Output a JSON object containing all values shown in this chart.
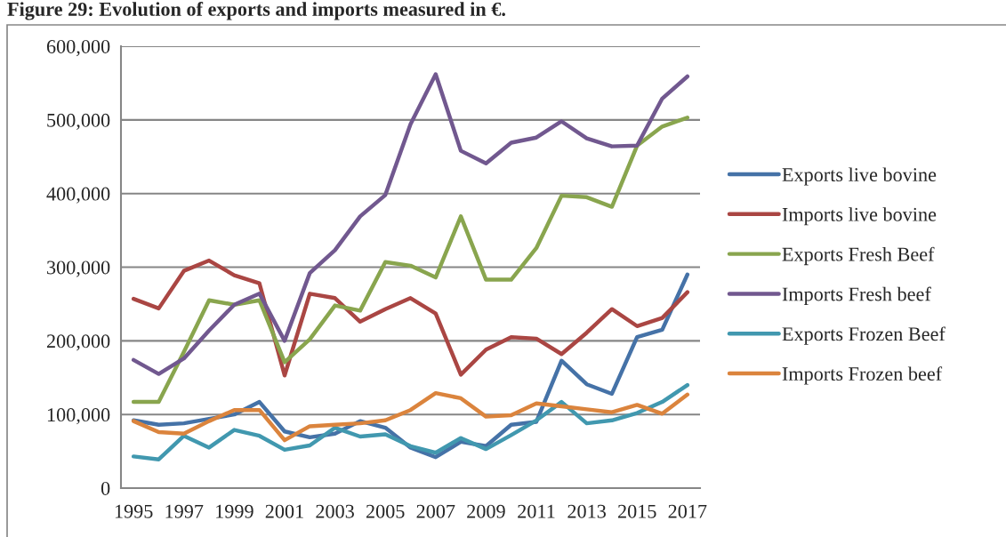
{
  "chart_data": {
    "type": "line",
    "title": "Figure 29: Evolution of exports and imports measured in €.",
    "categories": [
      "1995",
      null,
      "1997",
      null,
      "1999",
      null,
      "2001",
      null,
      "2003",
      null,
      "2005",
      null,
      "2007",
      null,
      "2009",
      null,
      "2011",
      null,
      "2013",
      null,
      "2015",
      null,
      "2017"
    ],
    "series": [
      {
        "name": "Exports live bovine",
        "color": "#4572a7",
        "values": [
          92000,
          86000,
          88000,
          94000,
          100000,
          117000,
          77000,
          69000,
          74000,
          91000,
          82000,
          55000,
          42000,
          63000,
          57000,
          86000,
          90000,
          173000,
          141000,
          128000,
          205000,
          215000,
          290000
        ]
      },
      {
        "name": "Imports live bovine",
        "color": "#aa4643",
        "values": [
          257000,
          244000,
          295000,
          309000,
          289000,
          278000,
          153000,
          264000,
          258000,
          226000,
          243000,
          258000,
          237000,
          154000,
          188000,
          205000,
          203000,
          182000,
          211000,
          243000,
          220000,
          231000,
          266000
        ]
      },
      {
        "name": "Exports Fresh Beef",
        "color": "#89a54e",
        "values": [
          117000,
          117000,
          185000,
          255000,
          249000,
          255000,
          171000,
          202000,
          248000,
          241000,
          307000,
          302000,
          286000,
          369000,
          283000,
          283000,
          326000,
          397000,
          395000,
          382000,
          465000,
          491000,
          503000
        ]
      },
      {
        "name": "Imports Fresh beef",
        "color": "#71588f",
        "values": [
          174000,
          155000,
          176000,
          214000,
          249000,
          264000,
          200000,
          292000,
          323000,
          369000,
          398000,
          494000,
          562000,
          458000,
          441000,
          469000,
          476000,
          498000,
          475000,
          464000,
          465000,
          529000,
          559000
        ]
      },
      {
        "name": "Exports Frozen Beef",
        "color": "#4198af",
        "values": [
          43000,
          39000,
          71000,
          55000,
          79000,
          71000,
          52000,
          58000,
          82000,
          70000,
          73000,
          57000,
          48000,
          68000,
          53000,
          72000,
          92000,
          117000,
          88000,
          92000,
          102000,
          117000,
          140000
        ]
      },
      {
        "name": "Imports Frozen beef",
        "color": "#db843d",
        "values": [
          91000,
          76000,
          74000,
          91000,
          106000,
          106000,
          65000,
          84000,
          86000,
          88000,
          92000,
          106000,
          129000,
          122000,
          97000,
          99000,
          115000,
          111000,
          107000,
          103000,
          113000,
          101000,
          127000
        ]
      }
    ],
    "ylim": [
      0,
      600000
    ],
    "yticks": [
      0,
      {
        "value": 100000,
        "label": "100,000"
      },
      {
        "value": 200000,
        "label": "200,000"
      },
      {
        "value": 300000,
        "label": "300,000"
      },
      {
        "value": 400000,
        "label": "400,000"
      },
      {
        "value": 500000,
        "label": "500,000"
      },
      {
        "value": 600000,
        "label": "600,000"
      }
    ],
    "grid": "y",
    "legend": "right"
  }
}
